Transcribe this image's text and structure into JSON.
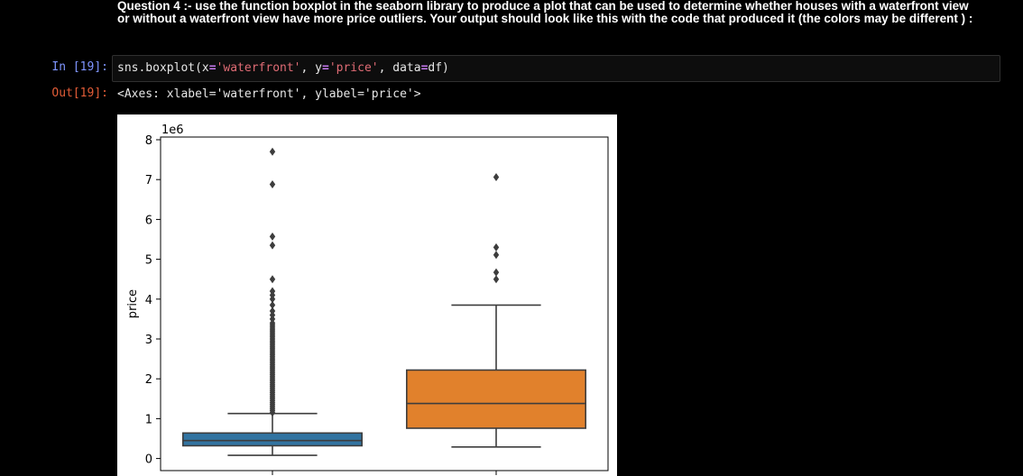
{
  "markdown": {
    "question_text": "Question 4 :- use the function boxplot in the seaborn library to produce a plot that can be used to determine whether houses with a waterfront view or without a waterfront view have more price outliers. Your output should look like this with the code that produced it (the colors may be different ) :"
  },
  "cell": {
    "in_prompt": "In [19]:",
    "out_prompt": "Out[19]:",
    "code": {
      "t1": "sns.boxplot(x",
      "t2": "=",
      "t3": "'waterfront'",
      "t4": ", y",
      "t5": "=",
      "t6": "'price'",
      "t7": ", data",
      "t8": "=",
      "t9": "df)"
    },
    "output_text": "<Axes: xlabel='waterfront', ylabel='price'>"
  },
  "colors": {
    "background": "#000000",
    "box_waterfront_0": "#3274a1",
    "box_waterfront_1": "#e1812c",
    "line": "#3d3d3d"
  },
  "chart_data": {
    "type": "boxplot",
    "ylabel": "price",
    "y_scale_label": "1e6",
    "ylim": [
      -0.3,
      8.1
    ],
    "yticks": [
      "0",
      "1",
      "2",
      "3",
      "4",
      "5",
      "6",
      "7",
      "8"
    ],
    "ytick_values": [
      0,
      1,
      2,
      3,
      4,
      5,
      6,
      7,
      8
    ],
    "series": [
      {
        "q1": 0.32,
        "median": 0.45,
        "q3": 0.64,
        "whisker_low": 0.08,
        "whisker_high": 1.13,
        "outliers": [
          1.15,
          1.2,
          1.25,
          1.3,
          1.35,
          1.4,
          1.45,
          1.5,
          1.55,
          1.6,
          1.65,
          1.7,
          1.75,
          1.8,
          1.85,
          1.9,
          1.95,
          2.0,
          2.05,
          2.1,
          2.15,
          2.2,
          2.25,
          2.3,
          2.35,
          2.4,
          2.45,
          2.5,
          2.55,
          2.6,
          2.65,
          2.7,
          2.75,
          2.8,
          2.85,
          2.9,
          2.95,
          3.0,
          3.05,
          3.1,
          3.15,
          3.2,
          3.25,
          3.3,
          3.35,
          3.4,
          3.5,
          3.6,
          3.7,
          3.85,
          4.0,
          4.1,
          4.2,
          4.5,
          5.35,
          5.57,
          6.88,
          7.7
        ]
      },
      {
        "q1": 0.76,
        "median": 1.38,
        "q3": 2.22,
        "whisker_low": 0.29,
        "whisker_high": 3.85,
        "outliers": [
          4.5,
          4.67,
          5.11,
          5.3,
          7.06
        ]
      }
    ]
  }
}
